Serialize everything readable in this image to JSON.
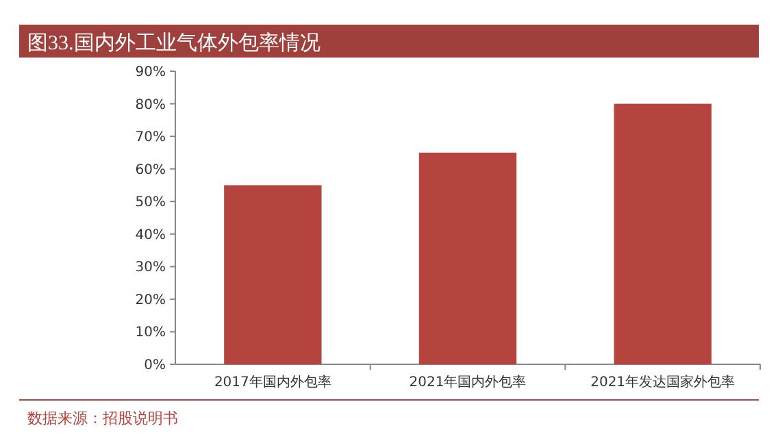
{
  "chart_data": {
    "type": "bar",
    "title": "图33.国内外工业气体外包率情况",
    "categories": [
      "2017年国内外包率",
      "2021年国内外包率",
      "2021年发达国家外包率"
    ],
    "values": [
      55,
      65,
      80
    ],
    "color": "#b5443f",
    "ylim": [
      0,
      90
    ],
    "yticks": [
      {
        "value": 0,
        "label": "0%"
      },
      {
        "value": 10,
        "label": "10%"
      },
      {
        "value": 20,
        "label": "20%"
      },
      {
        "value": 30,
        "label": "30%"
      },
      {
        "value": 40,
        "label": "40%"
      },
      {
        "value": 50,
        "label": "50%"
      },
      {
        "value": 60,
        "label": "60%"
      },
      {
        "value": 70,
        "label": "70%"
      },
      {
        "value": 80,
        "label": "80%"
      },
      {
        "value": 90,
        "label": "90%"
      }
    ],
    "grid": false,
    "annotations": [
      "数据来源：招股说明书"
    ]
  }
}
